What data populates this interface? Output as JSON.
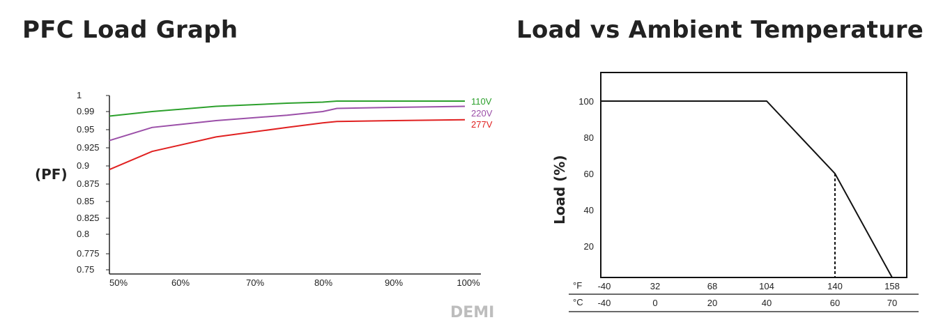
{
  "chart_data": [
    {
      "type": "line",
      "title": "PFC Load Graph",
      "ylabel": "(PF)",
      "xlabel": "",
      "x": [
        50,
        56,
        65,
        75,
        80,
        82,
        90,
        100
      ],
      "x_tick_labels": [
        "50%",
        "60%",
        "70%",
        "80%",
        "90%",
        "100%"
      ],
      "y_tick_labels": [
        "1",
        "0.99",
        "0.95",
        "0.925",
        "0.9",
        "0.875",
        "0.85",
        "0.825",
        "0.8",
        "0.775",
        "0.75"
      ],
      "series": [
        {
          "name": "110V",
          "color": "#2ca02c",
          "y_pos": [
            0.98,
            0.99,
            0.995,
            0.998,
            0.999,
            1.0,
            1.0,
            1.0
          ]
        },
        {
          "name": "220V",
          "color": "#9b4fa8",
          "y_pos": [
            0.935,
            0.955,
            0.97,
            0.982,
            0.99,
            0.993,
            0.994,
            0.995
          ]
        },
        {
          "name": "277V",
          "color": "#e02020",
          "y_pos": [
            0.895,
            0.92,
            0.94,
            0.955,
            0.965,
            0.968,
            0.97,
            0.972
          ]
        }
      ],
      "grid": false,
      "legend": "right-end labels"
    },
    {
      "type": "line",
      "title": "Load vs Ambient Temperature",
      "ylabel": "Load (%)",
      "y_ticks": [
        100,
        80,
        60,
        40,
        20
      ],
      "ylim": [
        0,
        110
      ],
      "xlim": [
        -40,
        70
      ],
      "x_unit_f": "°F",
      "x_unit_c": "°C",
      "x_ticks_f": [
        "-40",
        "32",
        "68",
        "104",
        "140",
        "158"
      ],
      "x_ticks_c": [
        "-40",
        "0",
        "20",
        "40",
        "60",
        "70"
      ],
      "x_tick_c_values": [
        -40,
        0,
        20,
        40,
        60,
        70
      ],
      "series": [
        {
          "x": [
            -40,
            40,
            60,
            70
          ],
          "y": [
            100,
            100,
            60,
            0
          ],
          "color": "#111111"
        }
      ],
      "dashed_marker": {
        "x": 60,
        "y": 60
      },
      "grid": false
    }
  ],
  "watermark": "DEMI"
}
